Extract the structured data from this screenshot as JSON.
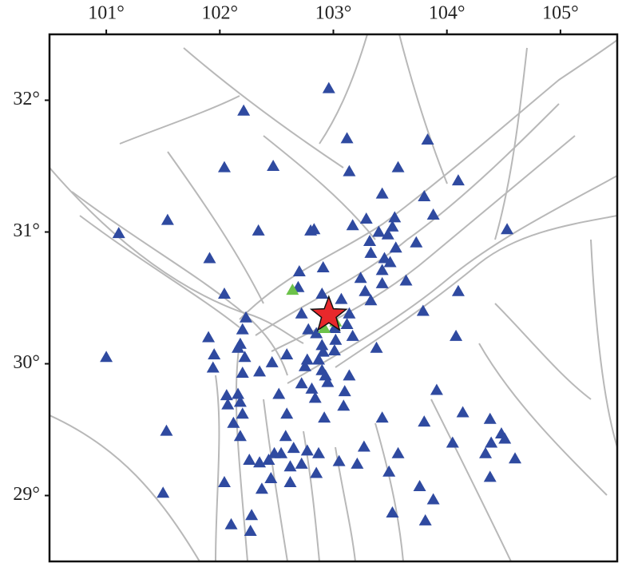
{
  "chart_data": {
    "type": "scatter",
    "xlim": [
      100.5,
      105.5
    ],
    "ylim": [
      28.5,
      32.5
    ],
    "xticks": [
      {
        "value": 101,
        "label": "101°"
      },
      {
        "value": 102,
        "label": "102°"
      },
      {
        "value": 103,
        "label": "103°"
      },
      {
        "value": 104,
        "label": "104°"
      },
      {
        "value": 105,
        "label": "105°"
      }
    ],
    "yticks": [
      {
        "value": 29,
        "label": "29°"
      },
      {
        "value": 30,
        "label": "30°"
      },
      {
        "value": 31,
        "label": "31°"
      },
      {
        "value": 32,
        "label": "32°"
      }
    ],
    "series": [
      {
        "color": "#2f4aa0",
        "marker": "triangle",
        "x": [
          102.21,
          102.96,
          102.04,
          102.47,
          103.12,
          103.14,
          103.83,
          103.57,
          104.1,
          103.8,
          103.43,
          103.88,
          101.11,
          101.54,
          102.34,
          102.8,
          102.83,
          103.17,
          103.29,
          103.4,
          103.52,
          103.54,
          103.73,
          104.53,
          101.91,
          102.7,
          102.91,
          103.32,
          103.48,
          103.33,
          103.45,
          103.55,
          103.5,
          103.24,
          103.43,
          103.64,
          103.43,
          103.28,
          103.33,
          103.07,
          102.9,
          102.04,
          102.69,
          104.1,
          103.79,
          102.23,
          102.72,
          103.14,
          103.12,
          103.17,
          101.9,
          102.2,
          102.18,
          102.16,
          102.78,
          102.85,
          103.01,
          103.02,
          102.9,
          102.91,
          102.87,
          101.0,
          101.95,
          102.22,
          102.59,
          102.77,
          103.01,
          103.38,
          104.08,
          101.94,
          102.2,
          102.46,
          102.35,
          102.9,
          102.75,
          102.93,
          102.95,
          102.72,
          102.81,
          103.14,
          102.06,
          102.16,
          102.52,
          102.84,
          103.1,
          103.91,
          102.07,
          102.18,
          102.2,
          102.59,
          103.09,
          103.43,
          102.12,
          102.92,
          103.8,
          104.14,
          104.38,
          102.18,
          102.58,
          102.65,
          102.48,
          102.26,
          102.35,
          102.43,
          102.54,
          102.77,
          102.87,
          103.27,
          103.57,
          104.05,
          104.34,
          104.48,
          104.51,
          104.39,
          104.6,
          101.53,
          102.62,
          102.72,
          102.85,
          103.05,
          103.21,
          103.49,
          102.45,
          102.04,
          102.62,
          102.37,
          103.76,
          104.38,
          101.5,
          103.88,
          102.28,
          102.1,
          102.27,
          103.52,
          103.81
        ],
        "y": [
          31.92,
          32.09,
          31.49,
          31.5,
          31.71,
          31.46,
          31.7,
          31.49,
          31.39,
          31.27,
          31.29,
          31.13,
          30.99,
          31.09,
          31.01,
          31.01,
          31.02,
          31.05,
          31.1,
          31.0,
          31.04,
          31.11,
          30.92,
          31.02,
          30.8,
          30.7,
          30.73,
          30.93,
          30.98,
          30.84,
          30.8,
          30.88,
          30.77,
          30.65,
          30.71,
          30.63,
          30.61,
          30.55,
          30.48,
          30.49,
          30.53,
          30.53,
          30.58,
          30.55,
          30.4,
          30.35,
          30.38,
          30.38,
          30.3,
          30.21,
          30.2,
          30.26,
          30.15,
          30.12,
          30.26,
          30.23,
          30.27,
          30.18,
          30.14,
          30.09,
          30.03,
          30.05,
          30.07,
          30.05,
          30.07,
          30.03,
          30.1,
          30.12,
          30.21,
          29.97,
          29.93,
          30.01,
          29.94,
          29.95,
          29.98,
          29.91,
          29.86,
          29.85,
          29.81,
          29.91,
          29.76,
          29.77,
          29.77,
          29.74,
          29.79,
          29.8,
          29.69,
          29.71,
          29.62,
          29.62,
          29.68,
          29.59,
          29.55,
          29.59,
          29.56,
          29.63,
          29.58,
          29.45,
          29.45,
          29.36,
          29.32,
          29.27,
          29.25,
          29.27,
          29.32,
          29.34,
          29.32,
          29.37,
          29.32,
          29.4,
          29.32,
          29.47,
          29.43,
          29.4,
          29.28,
          29.49,
          29.22,
          29.24,
          29.17,
          29.26,
          29.24,
          29.18,
          29.13,
          29.1,
          29.1,
          29.05,
          29.07,
          29.14,
          29.02,
          28.97,
          28.85,
          28.78,
          28.73,
          28.87,
          28.81
        ]
      },
      {
        "color": "#6cc24a",
        "marker": "triangle",
        "x": [
          102.64,
          103.02,
          102.92
        ],
        "y": [
          30.56,
          30.32,
          30.27
        ]
      },
      {
        "color": "#e8282b",
        "marker": "star",
        "x": [
          102.96
        ],
        "y": [
          30.37
        ]
      }
    ]
  }
}
